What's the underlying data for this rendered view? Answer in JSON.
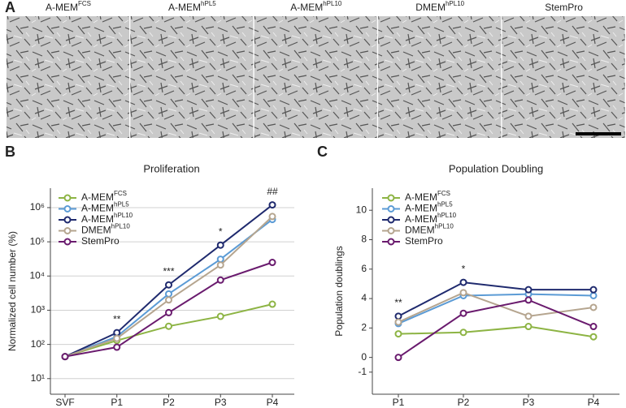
{
  "panel_labels": [
    "A",
    "B",
    "C"
  ],
  "micrographs": [
    {
      "name": "A-MEM",
      "sup": "FCS"
    },
    {
      "name": "A-MEM",
      "sup": "hPL5"
    },
    {
      "name": "A-MEM",
      "sup": "hPL10"
    },
    {
      "name": "DMEM",
      "sup": "hPL10"
    },
    {
      "name": "StemPro",
      "sup": ""
    }
  ],
  "chart_data": [
    {
      "type": "line",
      "title": "Proliferation",
      "y_label": "Normalized cell number (%)",
      "categories": [
        "SVF",
        "P1",
        "P2",
        "P3",
        "P4"
      ],
      "log_scale": true,
      "grid": true,
      "legend": "upper-left",
      "ylim": [
        3.5,
        3700000
      ],
      "yticks": [
        {
          "value": 10,
          "label": "10¹"
        },
        {
          "value": 100,
          "label": "10²"
        },
        {
          "value": 1000,
          "label": "10³"
        },
        {
          "value": 10000,
          "label": "10⁴"
        },
        {
          "value": 100000,
          "label": "10⁵"
        },
        {
          "value": 1000000,
          "label": "10⁶"
        }
      ],
      "series": [
        {
          "name": "A-MEM",
          "name_sup": "FCS",
          "color": "#8db444",
          "values": [
            44,
            130,
            340,
            660,
            1500
          ]
        },
        {
          "name": "A-MEM",
          "name_sup": "hPL5",
          "color": "#5b9bd5",
          "values": [
            44,
            170,
            3000,
            31000,
            450000
          ]
        },
        {
          "name": "A-MEM",
          "name_sup": "hPL10",
          "color": "#1f2a6e",
          "values": [
            44,
            220,
            5500,
            80000,
            1200000
          ]
        },
        {
          "name": "DMEM",
          "name_sup": "hPL10",
          "color": "#b5a58f",
          "values": [
            44,
            150,
            2000,
            21000,
            550000
          ]
        },
        {
          "name": "StemPro",
          "name_sup": "",
          "color": "#6a1b6e",
          "values": [
            44,
            83,
            850,
            7600,
            25000
          ]
        }
      ],
      "annotations": [
        {
          "text": "**",
          "category": "P1"
        },
        {
          "text": "***",
          "category": "P2"
        },
        {
          "text": "*",
          "category": "P3"
        },
        {
          "text": "##",
          "category": "P4"
        }
      ]
    },
    {
      "type": "line",
      "title": "Population Doubling",
      "y_label": "Population doublings",
      "categories": [
        "P1",
        "P2",
        "P3",
        "P4"
      ],
      "log_scale": false,
      "grid": false,
      "legend": "upper-left",
      "ylim": [
        -2.5,
        11.5
      ],
      "yticks": [
        -1,
        0,
        2,
        4,
        6,
        8,
        10
      ],
      "series": [
        {
          "name": "A-MEM",
          "name_sup": "FCS",
          "color": "#8db444",
          "values": [
            1.6,
            1.7,
            2.1,
            1.4
          ]
        },
        {
          "name": "A-MEM",
          "name_sup": "hPL5",
          "color": "#5b9bd5",
          "values": [
            2.3,
            4.2,
            4.3,
            4.2
          ]
        },
        {
          "name": "A-MEM",
          "name_sup": "hPL10",
          "color": "#1f2a6e",
          "values": [
            2.8,
            5.1,
            4.6,
            4.6
          ]
        },
        {
          "name": "DMEM",
          "name_sup": "hPL10",
          "color": "#b5a58f",
          "values": [
            2.4,
            4.4,
            2.8,
            3.4
          ]
        },
        {
          "name": "StemPro",
          "name_sup": "",
          "color": "#6a1b6e",
          "values": [
            0,
            3.0,
            3.9,
            2.1
          ]
        }
      ],
      "annotations": [
        {
          "text": "**",
          "category": "P1"
        },
        {
          "text": "*",
          "category": "P2"
        }
      ]
    }
  ]
}
